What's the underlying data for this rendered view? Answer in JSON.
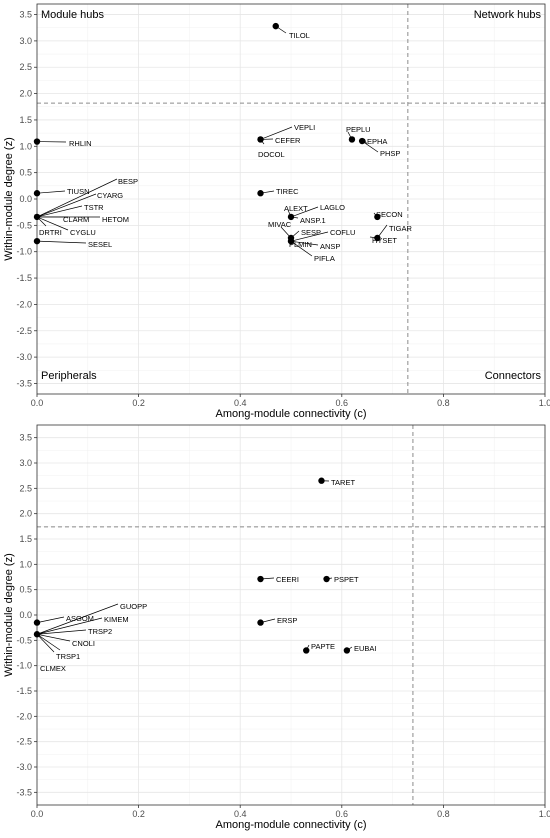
{
  "chart_data": [
    {
      "type": "scatter",
      "xlabel": "Among-module connectivity (c)",
      "ylabel": "Within-module degree (z)",
      "xlim": [
        0,
        1
      ],
      "ylim": [
        -3.7,
        3.7
      ],
      "x_ticks": [
        "0.0",
        "0.2",
        "0.4",
        "0.6",
        "0.8",
        "1.0"
      ],
      "x_tick_values": [
        0,
        0.2,
        0.4,
        0.6,
        0.8,
        1.0
      ],
      "y_ticks": [
        "-3.5",
        "-3.0",
        "-2.5",
        "-2.0",
        "-1.5",
        "-1.0",
        "-0.5",
        "0.0",
        "0.5",
        "1.0",
        "1.5",
        "2.0",
        "2.5",
        "3.0",
        "3.5"
      ],
      "y_tick_values": [
        -3.5,
        -3,
        -2.5,
        -2,
        -1.5,
        -1,
        -0.5,
        0,
        0.5,
        1,
        1.5,
        2,
        2.5,
        3,
        3.5
      ],
      "threshold_x": 0.73,
      "threshold_y": 1.82,
      "quadrants": {
        "top_left": "Module hubs",
        "top_right": "Network hubs",
        "bottom_left": "Peripherals",
        "bottom_right": "Connectors"
      },
      "points": [
        {
          "x": 0.47,
          "y": 3.28,
          "label": "TILOL"
        },
        {
          "x": 0.0,
          "y": 1.09,
          "label": "RHLIN"
        },
        {
          "x": 0.44,
          "y": 1.13,
          "label": "VEPLI"
        },
        {
          "x": 0.44,
          "y": 1.13,
          "label": "CEFER"
        },
        {
          "x": 0.44,
          "y": 1.13,
          "label": "DOCOL"
        },
        {
          "x": 0.62,
          "y": 1.13,
          "label": "PEPLU"
        },
        {
          "x": 0.64,
          "y": 1.1,
          "label": "AEPHA"
        },
        {
          "x": 0.64,
          "y": 1.1,
          "label": "PHSP"
        },
        {
          "x": 0.0,
          "y": 0.11,
          "label": "TIUSN"
        },
        {
          "x": 0.44,
          "y": 0.11,
          "label": "TIREC"
        },
        {
          "x": 0.0,
          "y": -0.34,
          "label": "BESP"
        },
        {
          "x": 0.0,
          "y": -0.34,
          "label": "CYARG"
        },
        {
          "x": 0.0,
          "y": -0.34,
          "label": "TSTR"
        },
        {
          "x": 0.0,
          "y": -0.34,
          "label": "CLARM"
        },
        {
          "x": 0.0,
          "y": -0.34,
          "label": "HETOM"
        },
        {
          "x": 0.0,
          "y": -0.34,
          "label": "DRTRI"
        },
        {
          "x": 0.0,
          "y": -0.34,
          "label": "CYGLU"
        },
        {
          "x": 0.0,
          "y": -0.8,
          "label": "SESEL"
        },
        {
          "x": 0.5,
          "y": -0.34,
          "label": "ALEXT"
        },
        {
          "x": 0.5,
          "y": -0.34,
          "label": "LAGLO"
        },
        {
          "x": 0.5,
          "y": -0.34,
          "label": "ANSP.1"
        },
        {
          "x": 0.67,
          "y": -0.34,
          "label": "SECON"
        },
        {
          "x": 0.67,
          "y": -0.74,
          "label": "TIGAR"
        },
        {
          "x": 0.67,
          "y": -0.74,
          "label": "HYSET"
        },
        {
          "x": 0.5,
          "y": -0.74,
          "label": "MIVAC"
        },
        {
          "x": 0.5,
          "y": -0.74,
          "label": "SESP"
        },
        {
          "x": 0.5,
          "y": -0.8,
          "label": "COFLU"
        },
        {
          "x": 0.5,
          "y": -0.8,
          "label": "PLMIN"
        },
        {
          "x": 0.5,
          "y": -0.8,
          "label": "ANSP"
        },
        {
          "x": 0.5,
          "y": -0.8,
          "label": "PIFLA"
        }
      ]
    },
    {
      "type": "scatter",
      "xlabel": "Among-module connectivity (c)",
      "ylabel": "Within-module degree (z)",
      "xlim": [
        0,
        1
      ],
      "ylim": [
        -3.75,
        3.75
      ],
      "x_ticks": [
        "0.0",
        "0.2",
        "0.4",
        "0.6",
        "0.8",
        "1.0"
      ],
      "x_tick_values": [
        0,
        0.2,
        0.4,
        0.6,
        0.8,
        1.0
      ],
      "y_ticks": [
        "-3.5",
        "-3.0",
        "-2.5",
        "-2.0",
        "-1.5",
        "-1.0",
        "-0.5",
        "0.0",
        "0.5",
        "1.0",
        "1.5",
        "2.0",
        "2.5",
        "3.0",
        "3.5"
      ],
      "y_tick_values": [
        -3.5,
        -3,
        -2.5,
        -2,
        -1.5,
        -1,
        -0.5,
        0,
        0.5,
        1,
        1.5,
        2,
        2.5,
        3,
        3.5
      ],
      "threshold_x": 0.74,
      "threshold_y": 1.74,
      "quadrants": {},
      "points": [
        {
          "x": 0.56,
          "y": 2.65,
          "label": "TARET"
        },
        {
          "x": 0.44,
          "y": 0.71,
          "label": "CEERI"
        },
        {
          "x": 0.57,
          "y": 0.71,
          "label": "PSPET"
        },
        {
          "x": 0.44,
          "y": -0.15,
          "label": "ERSP"
        },
        {
          "x": 0.53,
          "y": -0.7,
          "label": "PAPTE"
        },
        {
          "x": 0.61,
          "y": -0.7,
          "label": "EUBAI"
        },
        {
          "x": 0.0,
          "y": -0.15,
          "label": "ASGOM"
        },
        {
          "x": 0.0,
          "y": -0.38,
          "label": "GUOPP"
        },
        {
          "x": 0.0,
          "y": -0.38,
          "label": "KIMEM"
        },
        {
          "x": 0.0,
          "y": -0.38,
          "label": "TRSP2"
        },
        {
          "x": 0.0,
          "y": -0.38,
          "label": "CNOLI"
        },
        {
          "x": 0.0,
          "y": -0.38,
          "label": "TRSP1"
        },
        {
          "x": 0.0,
          "y": -0.38,
          "label": "CLMEX"
        }
      ]
    }
  ]
}
